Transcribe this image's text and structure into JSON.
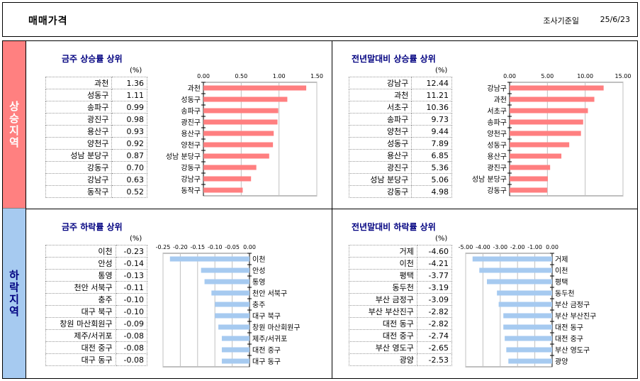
{
  "header": {
    "title": "매매가격",
    "date_label": "조사기준일",
    "date_value": "25/6/23"
  },
  "sections": {
    "rise_label": "상승지역",
    "fall_label": "하락지역"
  },
  "panels": {
    "weekly_rise": {
      "title": "금주 상승률 상위",
      "unit": "(%)"
    },
    "ytd_rise": {
      "title": "전년말대비 상승률 상위",
      "unit": "(%)"
    },
    "weekly_fall": {
      "title": "금주 하락률 상위",
      "unit": "(%)"
    },
    "ytd_fall": {
      "title": "전년말대비 하락률 상위",
      "unit": "(%)"
    }
  },
  "colors": {
    "rise_bar": "#ff7f80",
    "fall_bar": "#a6caf0",
    "rise_sidebar": "#ff8080",
    "fall_sidebar": "#a6caf0",
    "title_color": "#000080"
  },
  "chart_data": [
    {
      "id": "weekly_rise",
      "type": "bar",
      "orientation": "horizontal",
      "categories": [
        "과천",
        "성동구",
        "송파구",
        "광진구",
        "용산구",
        "양천구",
        "성남 분당구",
        "강동구",
        "강남구",
        "동작구"
      ],
      "values": [
        1.36,
        1.11,
        0.99,
        0.98,
        0.93,
        0.92,
        0.87,
        0.7,
        0.63,
        0.52
      ],
      "value_labels": [
        "1.36",
        "1.11",
        "0.99",
        "0.98",
        "0.93",
        "0.92",
        "0.87",
        "0.70",
        "0.63",
        "0.52"
      ],
      "xlim": [
        0,
        1.5
      ],
      "ticks": [
        0,
        0.5,
        1.0,
        1.5
      ],
      "tick_labels": [
        "0.00",
        "0.50",
        "1.00",
        "1.50"
      ],
      "grid": true
    },
    {
      "id": "ytd_rise",
      "type": "bar",
      "orientation": "horizontal",
      "categories": [
        "강남구",
        "과천",
        "서초구",
        "송파구",
        "양천구",
        "성동구",
        "용산구",
        "광진구",
        "성남 분당구",
        "강동구"
      ],
      "values": [
        12.44,
        11.21,
        10.36,
        9.73,
        9.44,
        7.89,
        6.85,
        5.36,
        5.06,
        4.98
      ],
      "value_labels": [
        "12.44",
        "11.21",
        "10.36",
        "9.73",
        "9.44",
        "7.89",
        "6.85",
        "5.36",
        "5.06",
        "4.98"
      ],
      "xlim": [
        0,
        15
      ],
      "ticks": [
        0,
        5,
        10,
        15
      ],
      "tick_labels": [
        "0.00",
        "5.00",
        "10.00",
        "15.00"
      ],
      "grid": true
    },
    {
      "id": "weekly_fall",
      "type": "bar",
      "orientation": "horizontal",
      "categories": [
        "이천",
        "안성",
        "통영",
        "천안 서북구",
        "충주",
        "대구 북구",
        "창원 마산회원구",
        "제주/서귀포",
        "대전 중구",
        "대구 동구"
      ],
      "values": [
        -0.23,
        -0.14,
        -0.13,
        -0.11,
        -0.1,
        -0.1,
        -0.09,
        -0.08,
        -0.08,
        -0.08
      ],
      "value_labels": [
        "-0.23",
        "-0.14",
        "-0.13",
        "-0.11",
        "-0.10",
        "-0.10",
        "-0.09",
        "-0.08",
        "-0.08",
        "-0.08"
      ],
      "xlim": [
        -0.25,
        0
      ],
      "ticks": [
        -0.25,
        -0.2,
        -0.15,
        -0.1,
        -0.05,
        0
      ],
      "tick_labels": [
        "-0.25",
        "-0.20",
        "-0.15",
        "-0.10",
        "-0.05",
        "0.00"
      ],
      "grid": true
    },
    {
      "id": "ytd_fall",
      "type": "bar",
      "orientation": "horizontal",
      "categories": [
        "거제",
        "이천",
        "평택",
        "동두천",
        "부산 금정구",
        "부산 부산진구",
        "대전 동구",
        "대전 중구",
        "부산 영도구",
        "광양"
      ],
      "values": [
        -4.6,
        -4.21,
        -3.77,
        -3.19,
        -3.09,
        -2.82,
        -2.82,
        -2.74,
        -2.65,
        -2.53
      ],
      "value_labels": [
        "-4.60",
        "-4.21",
        "-3.77",
        "-3.19",
        "-3.09",
        "-2.82",
        "-2.82",
        "-2.74",
        "-2.65",
        "-2.53"
      ],
      "xlim": [
        -5,
        0
      ],
      "ticks": [
        -5,
        -4,
        -3,
        -2,
        -1,
        0
      ],
      "tick_labels": [
        "-5.00",
        "-4.00",
        "-3.00",
        "-2.00",
        "-1.00",
        "0.00"
      ],
      "grid": true
    }
  ]
}
